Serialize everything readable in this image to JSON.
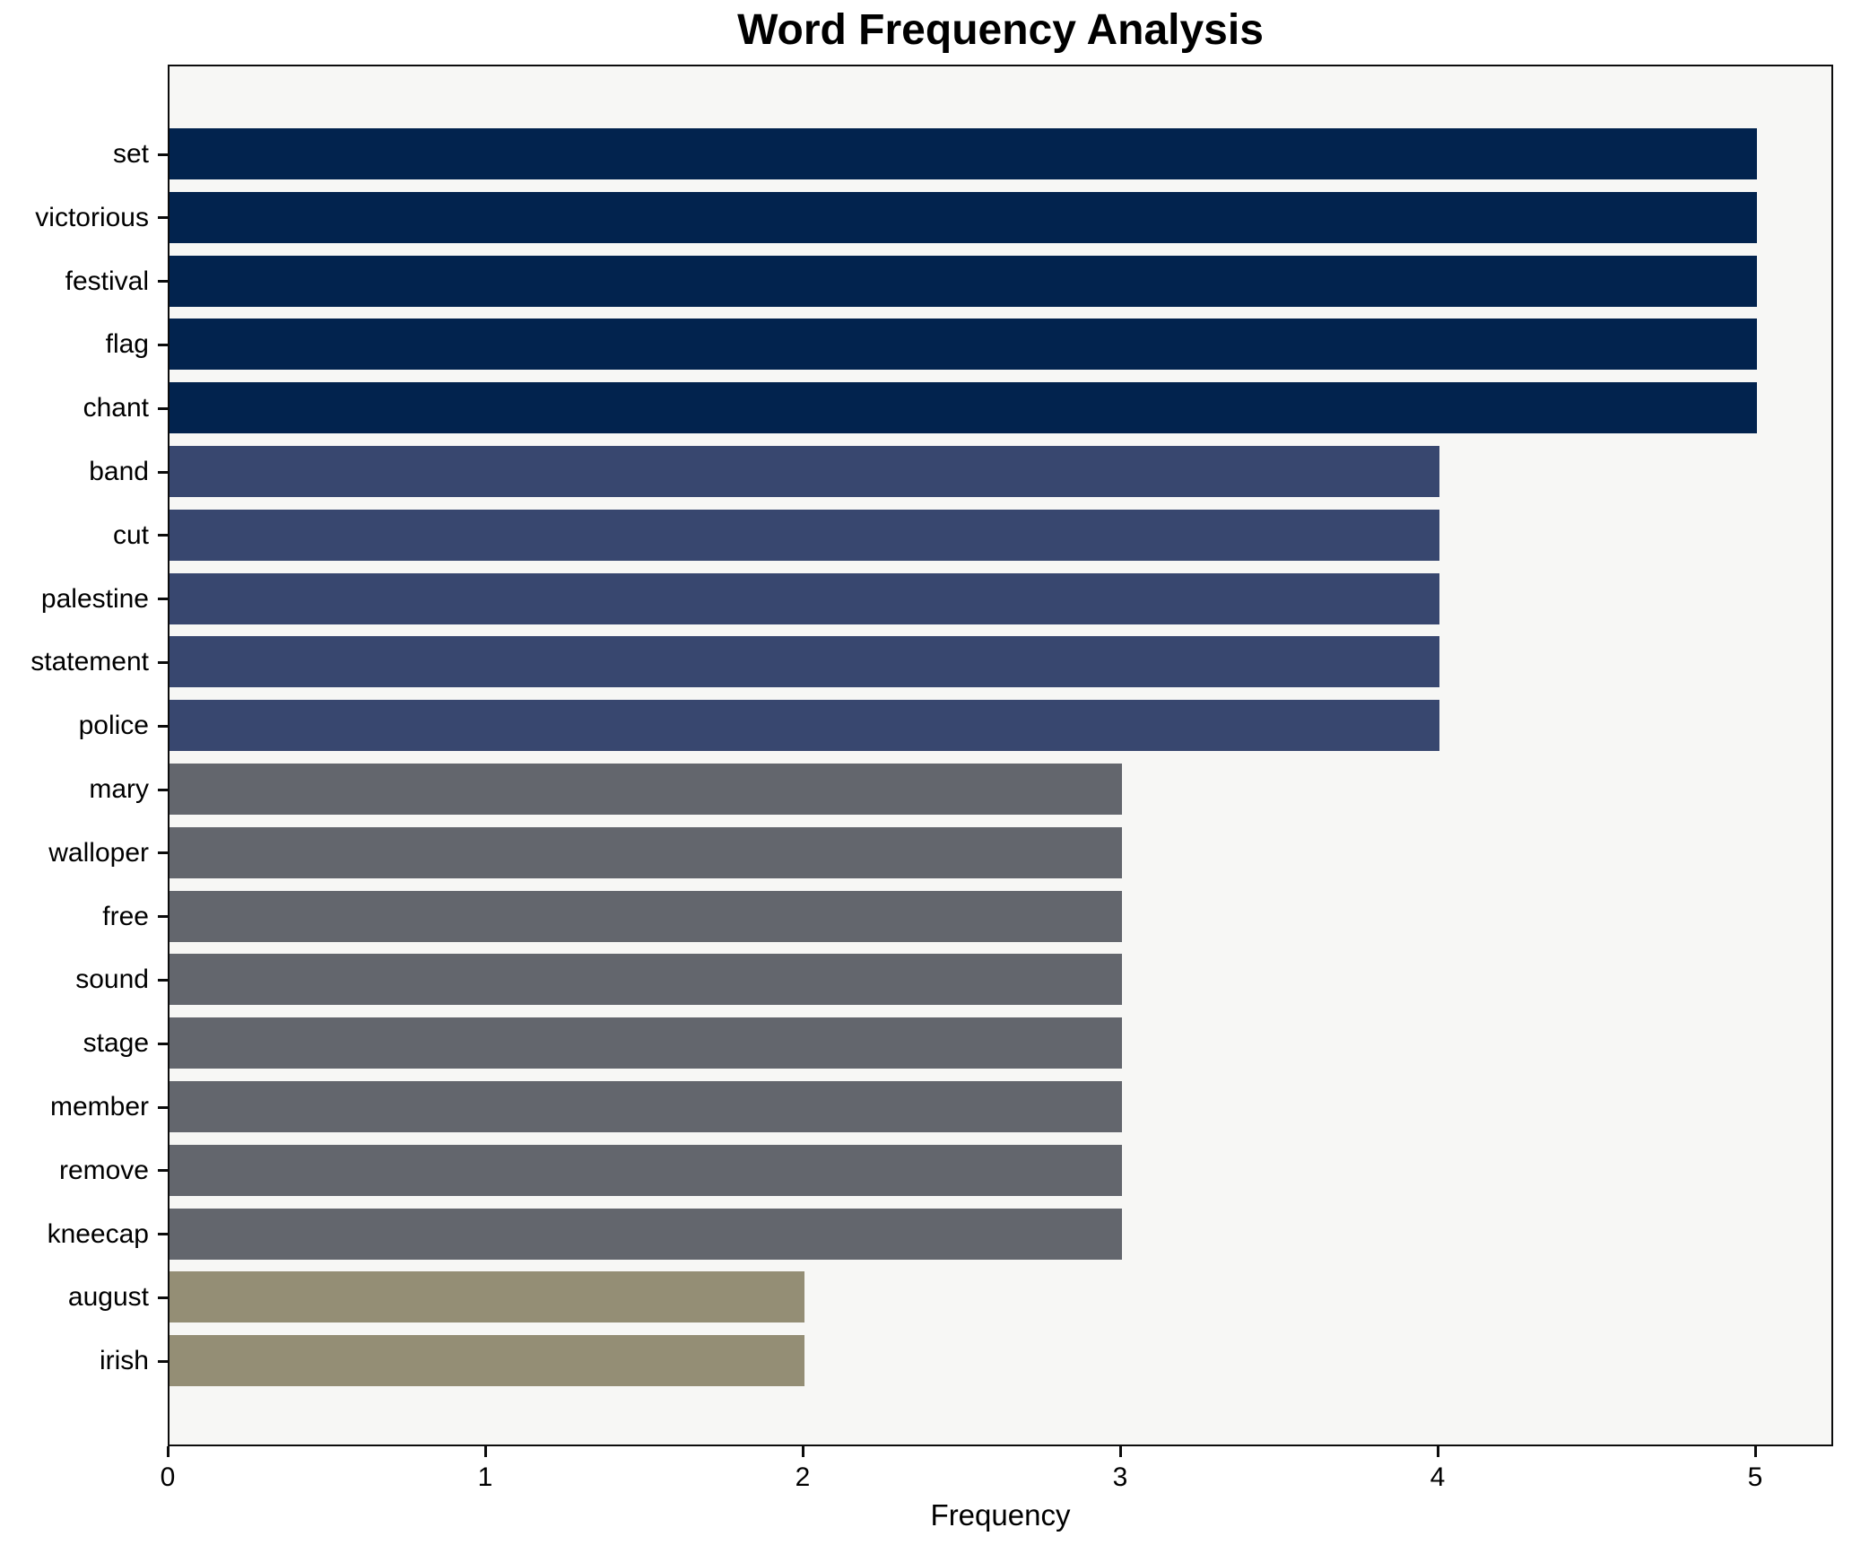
{
  "title": "Word Frequency Analysis",
  "chart_data": {
    "type": "bar",
    "orientation": "horizontal",
    "title": "Word Frequency Analysis",
    "xlabel": "Frequency",
    "ylabel": "",
    "categories": [
      "set",
      "victorious",
      "festival",
      "flag",
      "chant",
      "band",
      "cut",
      "palestine",
      "statement",
      "police",
      "mary",
      "walloper",
      "free",
      "sound",
      "stage",
      "member",
      "remove",
      "kneecap",
      "august",
      "irish"
    ],
    "values": [
      5,
      5,
      5,
      5,
      5,
      4,
      4,
      4,
      4,
      4,
      3,
      3,
      3,
      3,
      3,
      3,
      3,
      3,
      2,
      2
    ],
    "xlim": [
      0,
      5.25
    ],
    "xticks": [
      0,
      1,
      2,
      3,
      4,
      5
    ],
    "grid": false,
    "legend": false,
    "colors_by_value": {
      "5": "#02234e",
      "4": "#38476f",
      "3": "#63666d",
      "2": "#948e75"
    },
    "plot_background": "#f7f7f5",
    "spine_color": "#0c0c0c"
  }
}
